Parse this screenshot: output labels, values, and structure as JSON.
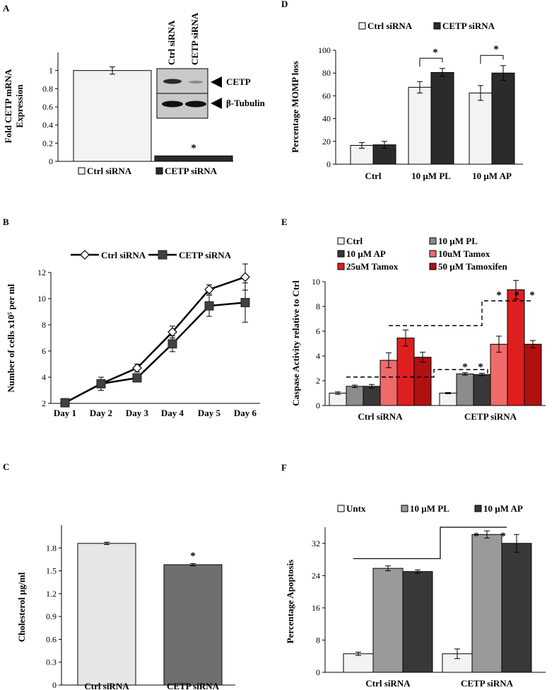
{
  "chart_data": [
    {
      "panel": "A",
      "type": "bar",
      "ylabel": "Fold CETP mRNA Expression",
      "categories": [
        "Ctrl siRNA",
        "CETP siRNA"
      ],
      "values": [
        1.0,
        0.06
      ],
      "errors": [
        0.04,
        0.0
      ],
      "ylim": [
        0,
        1.2
      ],
      "yticks": [
        "0",
        "0.2",
        "0.4",
        "0.6",
        "0.8",
        "1"
      ],
      "colors": [
        "#f3f3f3",
        "#2b2b2b"
      ],
      "legend": [
        "Ctrl siRNA",
        "CETP siRNA"
      ],
      "legend_position": "bottom",
      "significance": "*",
      "blot": {
        "lanes": [
          "Ctrl siRNA",
          "CETP siRNA"
        ],
        "bands": [
          "CETP",
          "β-Tubulin"
        ]
      }
    },
    {
      "panel": "B",
      "type": "line",
      "ylabel": "Number of cells x10⁵ per ml",
      "categories": [
        "Day 1",
        "Day 2",
        "Day 3",
        "Day 4",
        "Day 5",
        "Day 6"
      ],
      "ylim": [
        2,
        12
      ],
      "yticks": [
        "2",
        "4",
        "6",
        "8",
        "10",
        "12"
      ],
      "series": [
        {
          "name": "Ctrl siRNA",
          "values": [
            2.05,
            3.5,
            4.7,
            7.45,
            10.7,
            11.65
          ],
          "errors": [
            0.0,
            0.25,
            0.3,
            0.45,
            0.35,
            1.0
          ],
          "marker": "diamond-open"
        },
        {
          "name": "CETP siRNA",
          "values": [
            2.05,
            3.5,
            3.95,
            6.55,
            9.45,
            9.7
          ],
          "errors": [
            0.0,
            0.5,
            0.2,
            0.6,
            0.8,
            1.5
          ],
          "marker": "square-filled"
        }
      ],
      "legend_position": "top"
    },
    {
      "panel": "C",
      "type": "bar",
      "ylabel": "Cholesterol µg/ml",
      "categories": [
        "Ctrl siRNA",
        "CETP siRNA"
      ],
      "values": [
        1.86,
        1.58
      ],
      "errors": [
        0.015,
        0.015
      ],
      "ylim": [
        0,
        2.1
      ],
      "yticks": [
        "0",
        "0.3",
        "0.6",
        "0.9",
        "1.2",
        "1.5",
        "1.8"
      ],
      "colors": [
        "#e6e6e6",
        "#6f6f6f"
      ],
      "significance": "*"
    },
    {
      "panel": "D",
      "type": "bar",
      "ylabel": "Percentage MOMP loss",
      "categories": [
        "Ctrl",
        "10 µM PL",
        "10 µM AP"
      ],
      "ylim": [
        0,
        100
      ],
      "yticks": [
        "0",
        "20",
        "40",
        "60",
        "80",
        "100"
      ],
      "series": [
        {
          "name": "Ctrl siRNA",
          "values": [
            16.5,
            67.5,
            62.5
          ],
          "errors": [
            2.5,
            5.0,
            6.5
          ],
          "color": "#f3f3f3"
        },
        {
          "name": "CETP siRNA",
          "values": [
            17.0,
            80.5,
            80.0
          ],
          "errors": [
            3.0,
            3.5,
            6.5
          ],
          "color": "#2b2b2b"
        }
      ],
      "legend_position": "top",
      "significance": [
        "*",
        "*"
      ]
    },
    {
      "panel": "E",
      "type": "bar",
      "ylabel": "Caspase Activity relative to Ctrl",
      "categories": [
        "Ctrl siRNA",
        "CETP siRNA"
      ],
      "ylim": [
        0,
        10
      ],
      "yticks": [
        "0",
        "2",
        "4",
        "6",
        "8",
        "10"
      ],
      "series": [
        {
          "name": "Ctrl",
          "values": [
            1.0,
            1.0
          ],
          "errors": [
            0.1,
            0.05
          ],
          "color": "#f3f3f3"
        },
        {
          "name": "10 µM PL",
          "values": [
            1.55,
            2.55
          ],
          "errors": [
            0.1,
            0.1
          ],
          "color": "#8c8c8c"
        },
        {
          "name": "10 µM AP",
          "values": [
            1.55,
            2.5
          ],
          "errors": [
            0.15,
            0.1
          ],
          "color": "#383838"
        },
        {
          "name": "10uM Tamox",
          "values": [
            3.65,
            4.95
          ],
          "errors": [
            0.6,
            0.65
          ],
          "color": "#f06a6a"
        },
        {
          "name": "25uM Tamox",
          "values": [
            5.45,
            9.35
          ],
          "errors": [
            0.65,
            0.75
          ],
          "color": "#de1f1f"
        },
        {
          "name": "50 µM Tamoxifen",
          "values": [
            3.9,
            4.95
          ],
          "errors": [
            0.4,
            0.3
          ],
          "color": "#b01010"
        }
      ],
      "legend_position": "top",
      "significance": [
        "*",
        "*",
        "*",
        "*",
        "*"
      ]
    },
    {
      "panel": "F",
      "type": "bar",
      "ylabel": "Percentage Apoptosis",
      "categories": [
        "Ctrl siRNA",
        "CETP siRNA"
      ],
      "ylim": [
        0,
        36
      ],
      "yticks": [
        "0",
        "8",
        "16",
        "24",
        "32"
      ],
      "series": [
        {
          "name": "Untx",
          "values": [
            4.6,
            4.6
          ],
          "errors": [
            0.4,
            1.2
          ],
          "color": "#f3f3f3"
        },
        {
          "name": "10 µM PL",
          "values": [
            25.8,
            34.2
          ],
          "errors": [
            0.6,
            0.9
          ],
          "color": "#9a9a9a"
        },
        {
          "name": "10 µM AP",
          "values": [
            25.0,
            32.0
          ],
          "errors": [
            0.4,
            2.2
          ],
          "color": "#383838"
        }
      ],
      "legend_position": "top",
      "significance": [
        "*",
        "*"
      ]
    }
  ]
}
